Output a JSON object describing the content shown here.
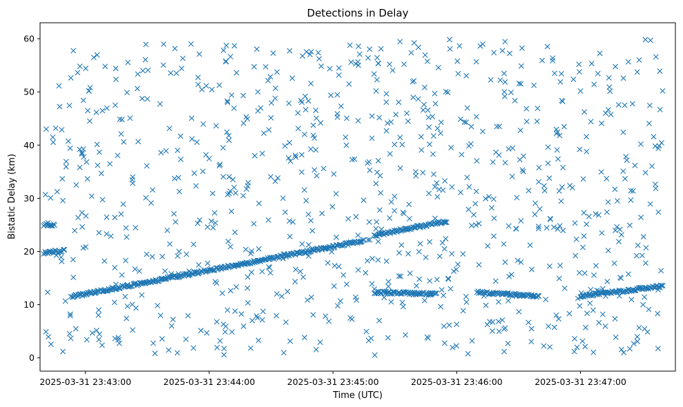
{
  "chart_data": {
    "type": "scatter",
    "title": "Detections in Delay",
    "xlabel": "Time (UTC)",
    "ylabel": "Bistatic Delay (km)",
    "marker": "x",
    "color": "#1f77b4",
    "grid": false,
    "x_unit": "time of day (UTC), seconds resolution",
    "xlim": [
      "2025-03-31 23:42:38",
      "2025-03-31 23:47:46"
    ],
    "ylim": [
      -2.5,
      63
    ],
    "x_ticks": [
      "2025-03-31 23:43:00",
      "2025-03-31 23:44:00",
      "2025-03-31 23:45:00",
      "2025-03-31 23:46:00",
      "2025-03-31 23:47:00"
    ],
    "y_ticks": [
      0,
      10,
      20,
      30,
      40,
      50,
      60
    ],
    "tracks": [
      {
        "from": "2025-03-31 23:42:53",
        "to": "2025-03-31 23:45:15",
        "delay_start": 11.5,
        "delay_end": 22.0
      },
      {
        "from": "2025-03-31 23:45:20",
        "to": "2025-03-31 23:45:55",
        "delay_start": 23.0,
        "delay_end": 25.7
      },
      {
        "from": "2025-03-31 23:46:10",
        "to": "2025-03-31 23:46:40",
        "delay_start": 12.3,
        "delay_end": 11.6
      },
      {
        "from": "2025-03-31 23:47:00",
        "to": "2025-03-31 23:47:40",
        "delay_start": 11.6,
        "delay_end": 13.5
      },
      {
        "from": "2025-03-31 23:45:20",
        "to": "2025-03-31 23:45:50",
        "delay_start": 12.3,
        "delay_end": 12.0
      },
      {
        "from": "2025-03-31 23:42:40",
        "to": "2025-03-31 23:42:45",
        "delay_start": 25.0,
        "delay_end": 25.0
      },
      {
        "from": "2025-03-31 23:42:40",
        "to": "2025-03-31 23:42:50",
        "delay_start": 19.7,
        "delay_end": 20.2
      }
    ],
    "clutter": {
      "count": 900,
      "delay_range": [
        0.5,
        60
      ],
      "time_range": [
        "2025-03-31 23:42:40",
        "2025-03-31 23:47:40"
      ]
    }
  }
}
